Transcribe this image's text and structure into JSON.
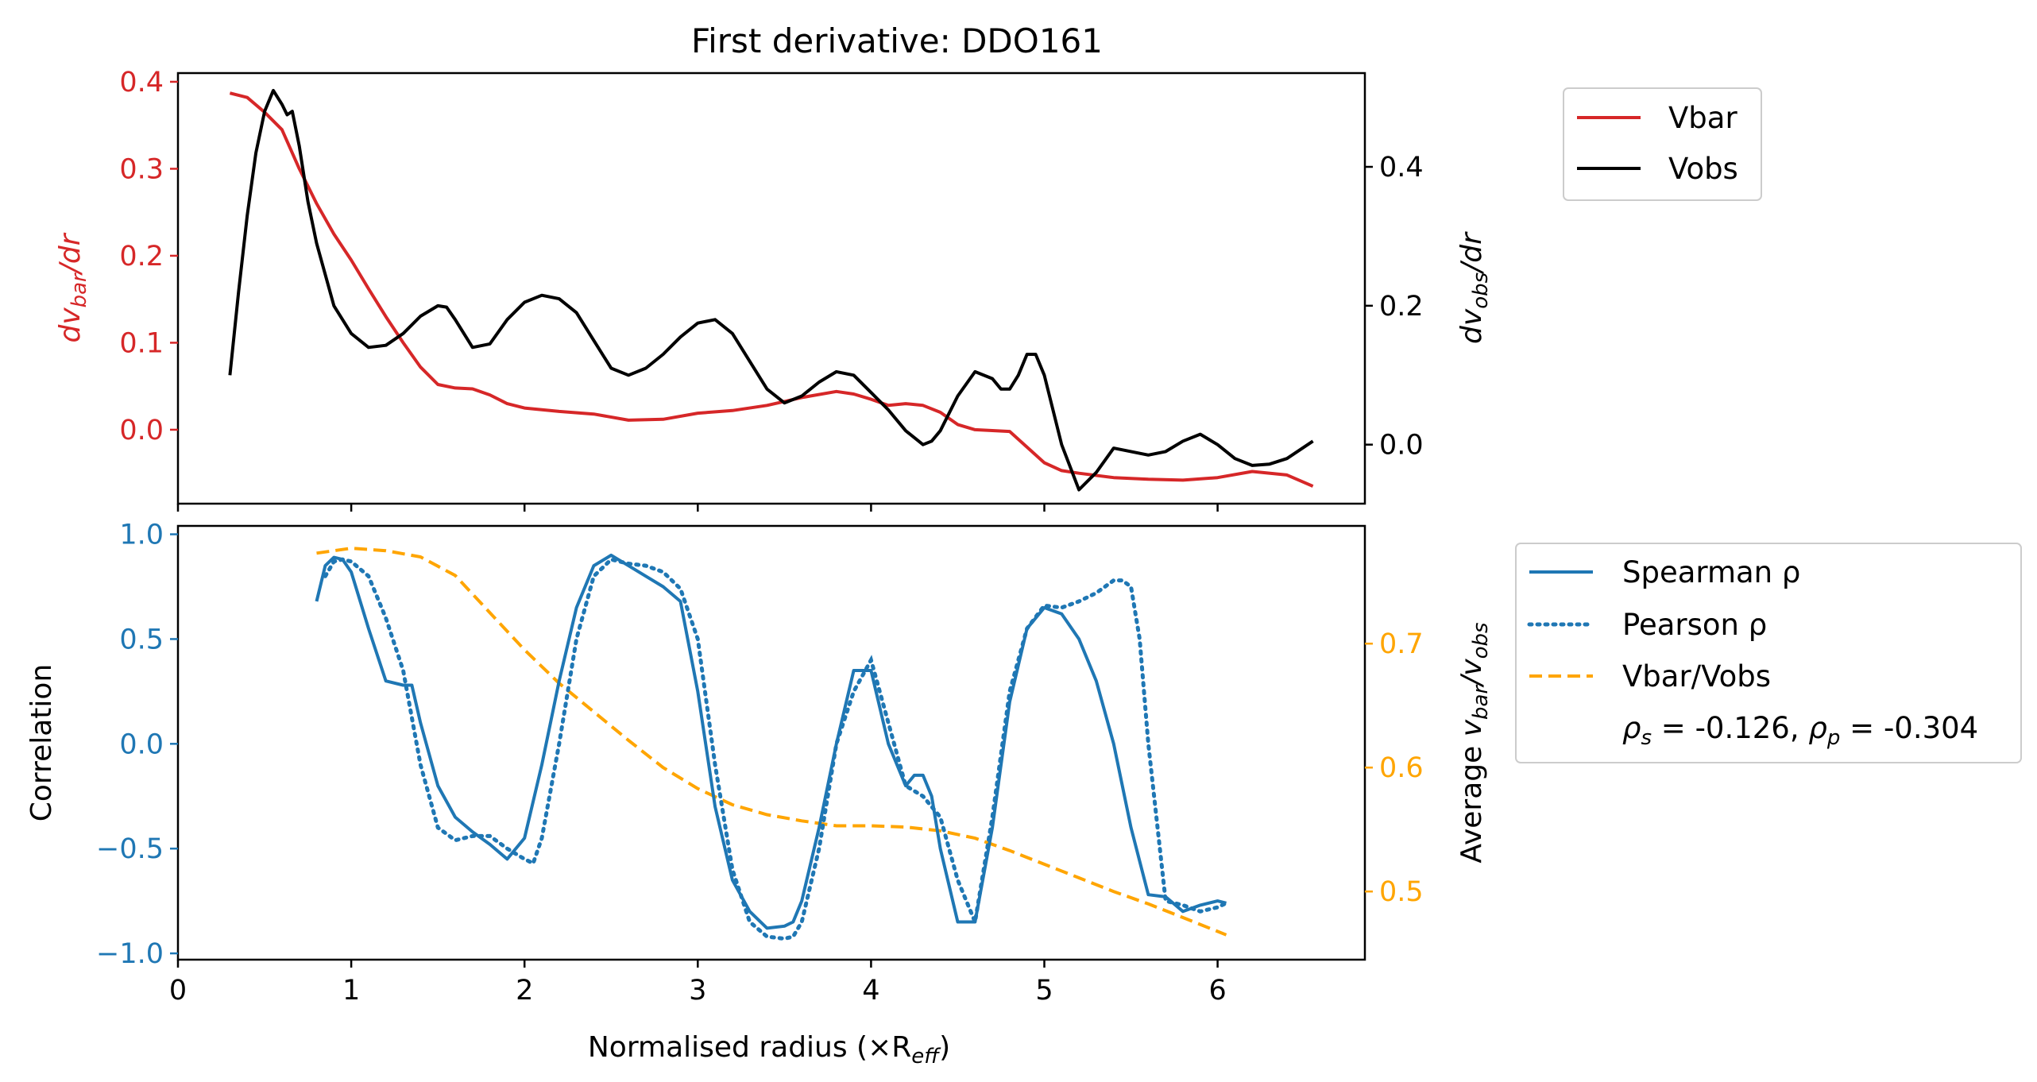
{
  "colors": {
    "vbar": "#d62728",
    "vobs": "#000000",
    "spearman": "#1f77b4",
    "pearson": "#1f77b4",
    "ratio": "#ffa500",
    "left_top_axis": "#d62728",
    "left_bottom_axis": "#1f77b4",
    "right_bottom_axis": "#ffa500"
  },
  "chart_data": [
    {
      "type": "line",
      "title": "First derivative: DDO161",
      "xlim": [
        0,
        6.85
      ],
      "ylim_left": [
        -0.085,
        0.41
      ],
      "ylim_right": [
        -0.085,
        0.535
      ],
      "xticks": [
        0,
        1,
        2,
        3,
        4,
        5,
        6
      ],
      "yticks_left": [
        {
          "v": 0.0,
          "label": "0.0"
        },
        {
          "v": 0.1,
          "label": "0.1"
        },
        {
          "v": 0.2,
          "label": "0.2"
        },
        {
          "v": 0.3,
          "label": "0.3"
        },
        {
          "v": 0.4,
          "label": "0.4"
        }
      ],
      "yticks_right": [
        {
          "v": 0.0,
          "label": "0.0"
        },
        {
          "v": 0.2,
          "label": "0.2"
        },
        {
          "v": 0.4,
          "label": "0.4"
        }
      ],
      "legend_placement": "outside-top-right",
      "series": [
        {
          "name": "Vbar",
          "axis": "left",
          "x": [
            0.3,
            0.4,
            0.5,
            0.6,
            0.7,
            0.8,
            0.9,
            1.0,
            1.1,
            1.2,
            1.3,
            1.4,
            1.5,
            1.6,
            1.7,
            1.8,
            1.9,
            2.0,
            2.2,
            2.4,
            2.6,
            2.8,
            3.0,
            3.2,
            3.4,
            3.6,
            3.8,
            3.9,
            4.0,
            4.1,
            4.2,
            4.3,
            4.4,
            4.5,
            4.6,
            4.8,
            5.0,
            5.1,
            5.2,
            5.4,
            5.6,
            5.8,
            6.0,
            6.2,
            6.4,
            6.55
          ],
          "y": [
            0.387,
            0.382,
            0.365,
            0.345,
            0.3,
            0.26,
            0.225,
            0.195,
            0.162,
            0.13,
            0.1,
            0.072,
            0.052,
            0.048,
            0.047,
            0.04,
            0.03,
            0.025,
            0.021,
            0.018,
            0.011,
            0.012,
            0.019,
            0.022,
            0.028,
            0.037,
            0.044,
            0.041,
            0.035,
            0.028,
            0.03,
            0.028,
            0.02,
            0.006,
            0.0,
            -0.002,
            -0.038,
            -0.047,
            -0.05,
            -0.055,
            -0.057,
            -0.058,
            -0.055,
            -0.048,
            -0.052,
            -0.065
          ]
        },
        {
          "name": "Vobs",
          "axis": "right",
          "x": [
            0.3,
            0.35,
            0.4,
            0.45,
            0.5,
            0.55,
            0.6,
            0.63,
            0.66,
            0.7,
            0.75,
            0.8,
            0.9,
            1.0,
            1.1,
            1.2,
            1.3,
            1.4,
            1.5,
            1.55,
            1.6,
            1.7,
            1.8,
            1.9,
            2.0,
            2.1,
            2.2,
            2.3,
            2.4,
            2.5,
            2.6,
            2.7,
            2.8,
            2.9,
            3.0,
            3.1,
            3.2,
            3.3,
            3.4,
            3.5,
            3.6,
            3.7,
            3.8,
            3.9,
            4.0,
            4.1,
            4.2,
            4.3,
            4.35,
            4.4,
            4.5,
            4.6,
            4.7,
            4.75,
            4.8,
            4.85,
            4.9,
            4.95,
            5.0,
            5.05,
            5.1,
            5.2,
            5.3,
            5.4,
            5.5,
            5.6,
            5.7,
            5.8,
            5.9,
            6.0,
            6.1,
            6.2,
            6.3,
            6.4,
            6.55
          ],
          "y": [
            0.1,
            0.22,
            0.33,
            0.42,
            0.48,
            0.51,
            0.49,
            0.475,
            0.48,
            0.43,
            0.35,
            0.29,
            0.2,
            0.16,
            0.14,
            0.143,
            0.16,
            0.185,
            0.2,
            0.198,
            0.18,
            0.14,
            0.145,
            0.18,
            0.205,
            0.215,
            0.21,
            0.19,
            0.15,
            0.11,
            0.1,
            0.11,
            0.13,
            0.155,
            0.175,
            0.18,
            0.16,
            0.12,
            0.08,
            0.06,
            0.07,
            0.09,
            0.105,
            0.1,
            0.075,
            0.05,
            0.02,
            0.0,
            0.005,
            0.02,
            0.07,
            0.105,
            0.095,
            0.08,
            0.08,
            0.1,
            0.13,
            0.13,
            0.1,
            0.05,
            0.0,
            -0.065,
            -0.04,
            -0.005,
            -0.01,
            -0.015,
            -0.01,
            0.005,
            0.015,
            0.0,
            -0.02,
            -0.03,
            -0.028,
            -0.02,
            0.005
          ]
        }
      ]
    },
    {
      "type": "line",
      "xlabel": "Normalised radius (×R",
      "xlabel_sub": "eff",
      "xlabel_close": ")",
      "ylabel_left": "Correlation",
      "xlim": [
        0,
        6.85
      ],
      "ylim_left": [
        -1.03,
        1.04
      ],
      "ylim_right": [
        0.445,
        0.795
      ],
      "xticks": [
        {
          "v": 0,
          "label": "0"
        },
        {
          "v": 1,
          "label": "1"
        },
        {
          "v": 2,
          "label": "2"
        },
        {
          "v": 3,
          "label": "3"
        },
        {
          "v": 4,
          "label": "4"
        },
        {
          "v": 5,
          "label": "5"
        },
        {
          "v": 6,
          "label": "6"
        }
      ],
      "yticks_left": [
        {
          "v": -1.0,
          "label": "−1.0"
        },
        {
          "v": -0.5,
          "label": "−0.5"
        },
        {
          "v": 0.0,
          "label": "0.0"
        },
        {
          "v": 0.5,
          "label": "0.5"
        },
        {
          "v": 1.0,
          "label": "1.0"
        }
      ],
      "yticks_right": [
        {
          "v": 0.5,
          "label": "0.5"
        },
        {
          "v": 0.6,
          "label": "0.6"
        },
        {
          "v": 0.7,
          "label": "0.7"
        }
      ],
      "legend_placement": "outside-right",
      "stats": {
        "rho_s": "-0.126",
        "rho_p": "-0.304"
      },
      "series": [
        {
          "name": "Spearman ρ",
          "axis": "left",
          "x": [
            0.8,
            0.85,
            0.9,
            0.95,
            1.0,
            1.1,
            1.2,
            1.3,
            1.35,
            1.4,
            1.5,
            1.6,
            1.7,
            1.8,
            1.9,
            2.0,
            2.1,
            2.2,
            2.3,
            2.4,
            2.5,
            2.6,
            2.7,
            2.8,
            2.9,
            3.0,
            3.1,
            3.2,
            3.3,
            3.4,
            3.5,
            3.55,
            3.6,
            3.7,
            3.8,
            3.9,
            4.0,
            4.1,
            4.2,
            4.25,
            4.3,
            4.35,
            4.4,
            4.5,
            4.6,
            4.7,
            4.8,
            4.9,
            5.0,
            5.1,
            5.2,
            5.3,
            5.4,
            5.5,
            5.6,
            5.7,
            5.8,
            5.9,
            6.0,
            6.05
          ],
          "y": [
            0.68,
            0.85,
            0.89,
            0.88,
            0.82,
            0.55,
            0.3,
            0.28,
            0.28,
            0.1,
            -0.2,
            -0.35,
            -0.42,
            -0.48,
            -0.55,
            -0.45,
            -0.1,
            0.3,
            0.65,
            0.85,
            0.9,
            0.85,
            0.8,
            0.75,
            0.68,
            0.25,
            -0.3,
            -0.65,
            -0.8,
            -0.88,
            -0.87,
            -0.85,
            -0.75,
            -0.4,
            0.0,
            0.35,
            0.35,
            0.0,
            -0.2,
            -0.15,
            -0.15,
            -0.25,
            -0.5,
            -0.85,
            -0.85,
            -0.4,
            0.2,
            0.55,
            0.65,
            0.62,
            0.5,
            0.3,
            0.0,
            -0.4,
            -0.72,
            -0.73,
            -0.8,
            -0.77,
            -0.75,
            -0.76
          ]
        },
        {
          "name": "Pearson ρ",
          "axis": "left",
          "x": [
            0.85,
            0.9,
            0.95,
            1.0,
            1.1,
            1.2,
            1.3,
            1.4,
            1.5,
            1.6,
            1.7,
            1.8,
            1.9,
            2.0,
            2.05,
            2.1,
            2.2,
            2.3,
            2.4,
            2.5,
            2.6,
            2.7,
            2.8,
            2.9,
            3.0,
            3.1,
            3.2,
            3.3,
            3.4,
            3.5,
            3.55,
            3.6,
            3.7,
            3.8,
            3.9,
            4.0,
            4.1,
            4.2,
            4.3,
            4.4,
            4.5,
            4.6,
            4.7,
            4.8,
            4.9,
            5.0,
            5.1,
            5.2,
            5.3,
            5.4,
            5.45,
            5.5,
            5.55,
            5.6,
            5.7,
            5.8,
            5.9,
            6.0,
            6.05
          ],
          "y": [
            0.8,
            0.87,
            0.88,
            0.87,
            0.8,
            0.6,
            0.35,
            -0.1,
            -0.4,
            -0.46,
            -0.44,
            -0.44,
            -0.5,
            -0.55,
            -0.57,
            -0.45,
            0.0,
            0.5,
            0.8,
            0.88,
            0.86,
            0.85,
            0.82,
            0.74,
            0.5,
            -0.1,
            -0.6,
            -0.85,
            -0.92,
            -0.93,
            -0.92,
            -0.85,
            -0.5,
            0.0,
            0.25,
            0.4,
            0.1,
            -0.2,
            -0.25,
            -0.35,
            -0.65,
            -0.85,
            -0.35,
            0.25,
            0.55,
            0.66,
            0.65,
            0.68,
            0.72,
            0.78,
            0.78,
            0.75,
            0.5,
            0.0,
            -0.75,
            -0.77,
            -0.8,
            -0.78,
            -0.76
          ]
        },
        {
          "name": "Vbar/Vobs",
          "axis": "right",
          "x": [
            0.8,
            1.0,
            1.2,
            1.4,
            1.6,
            1.8,
            2.0,
            2.2,
            2.4,
            2.6,
            2.8,
            3.0,
            3.2,
            3.4,
            3.6,
            3.8,
            4.0,
            4.2,
            4.4,
            4.6,
            4.8,
            5.0,
            5.2,
            5.4,
            5.6,
            5.8,
            6.05
          ],
          "y": [
            0.773,
            0.777,
            0.775,
            0.77,
            0.755,
            0.725,
            0.695,
            0.668,
            0.645,
            0.622,
            0.6,
            0.583,
            0.57,
            0.562,
            0.557,
            0.553,
            0.553,
            0.552,
            0.549,
            0.543,
            0.533,
            0.522,
            0.511,
            0.5,
            0.49,
            0.479,
            0.465
          ]
        }
      ]
    }
  ]
}
